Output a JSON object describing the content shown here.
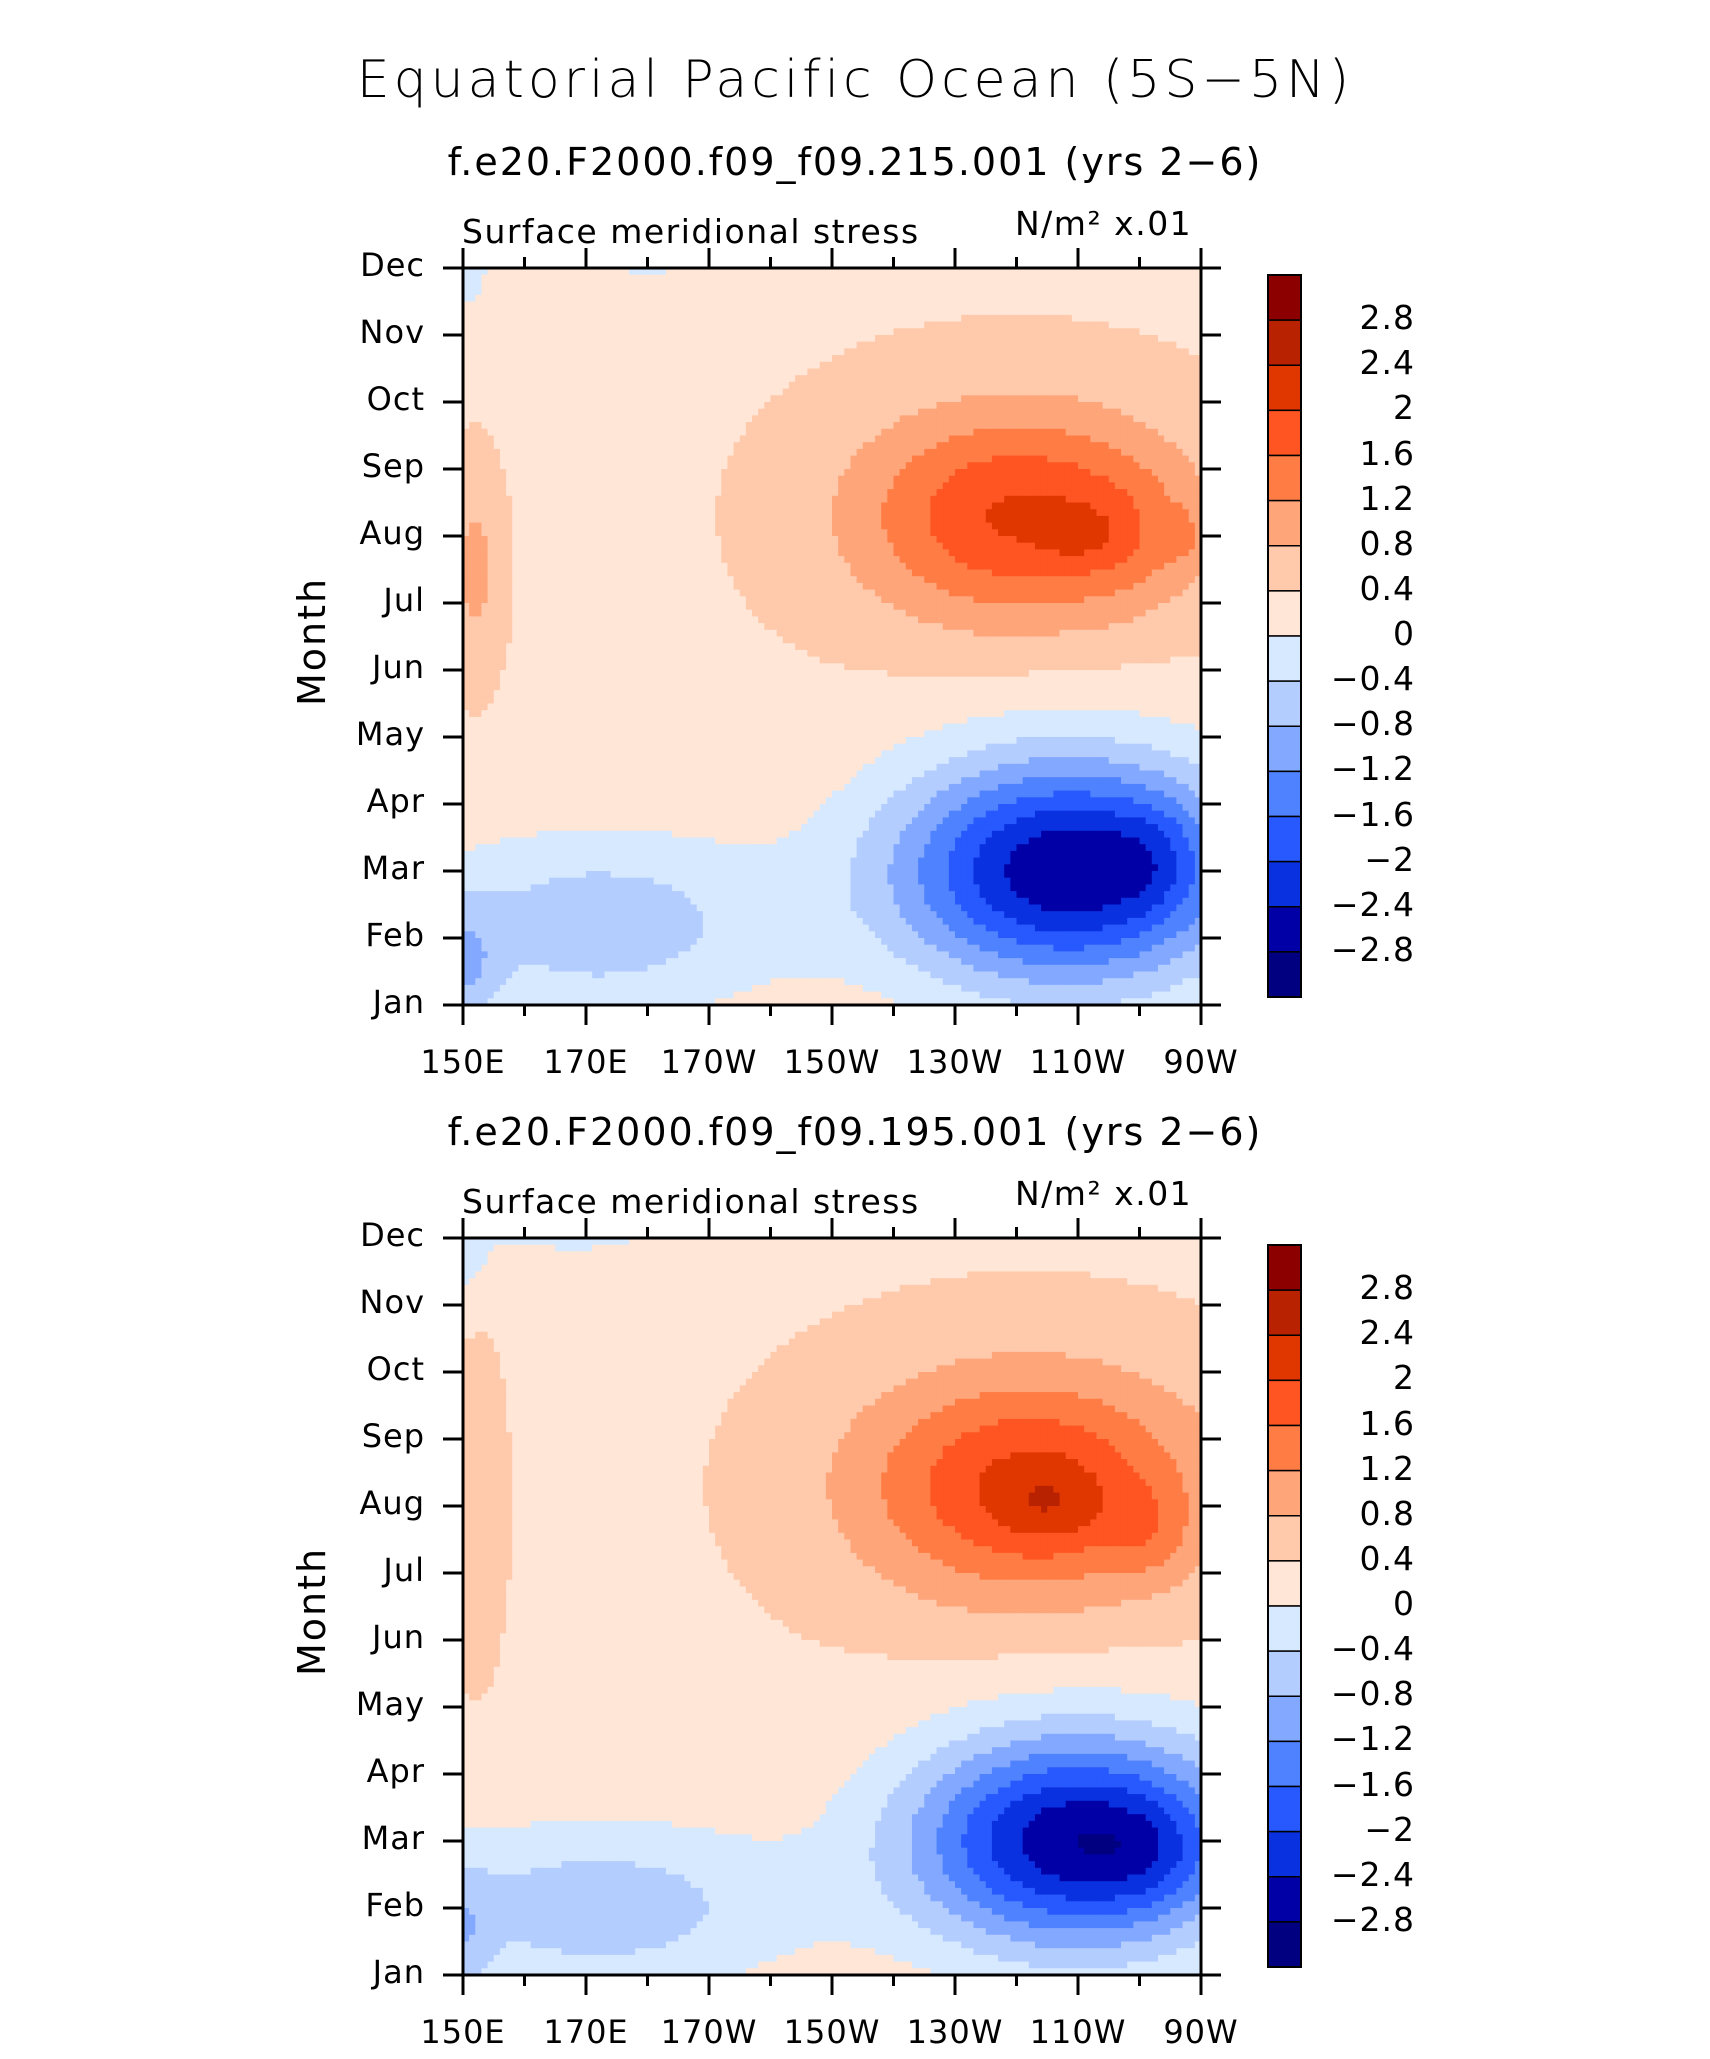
{
  "title": "Equatorial Pacific Ocean (5S−5N)",
  "colorbar": {
    "levels": [
      "2.8",
      "2.4",
      "2",
      "1.6",
      "1.2",
      "0.8",
      "0.4",
      "0",
      "−0.4",
      "−0.8",
      "−1.2",
      "−1.6",
      "−2",
      "−2.4",
      "−2.8"
    ],
    "colors": [
      "#8c0000",
      "#b82200",
      "#e03600",
      "#ff5522",
      "#ff7c44",
      "#ffa57a",
      "#ffc9ab",
      "#ffe6d6",
      "#d7e9ff",
      "#b4cdff",
      "#83a8ff",
      "#4f82ff",
      "#2759ff",
      "#0a31e0",
      "#0000a6",
      "#000080"
    ]
  },
  "chart_data": [
    {
      "type": "heatmap",
      "subtitle": "f.e20.F2000.f09_f09.215.001 (yrs 2−6)",
      "variable": "Surface meridional stress",
      "units": "N/m² x.01",
      "ylabel": "Month",
      "x_ticklabels": [
        "150E",
        "170E",
        "170W",
        "150W",
        "130W",
        "110W",
        "90W"
      ],
      "y_ticklabels": [
        "Jan",
        "Feb",
        "Mar",
        "Apr",
        "May",
        "Jun",
        "Jul",
        "Aug",
        "Sep",
        "Oct",
        "Nov",
        "Dec"
      ],
      "xlim": [
        150,
        270
      ],
      "ylim": [
        1,
        12
      ],
      "contour_levels": [
        -2.8,
        -2.4,
        -2,
        -1.6,
        -1.2,
        -0.8,
        -0.4,
        0,
        0.4,
        0.8,
        1.2,
        1.6,
        2,
        2.4,
        2.8
      ],
      "features": [
        {
          "type": "max",
          "lon": 250,
          "month": 8,
          "value": 2.1
        },
        {
          "type": "max",
          "lon": 266,
          "month": 8,
          "value": 2.0
        },
        {
          "type": "min",
          "lon": 254,
          "month": 3,
          "value": -2.7
        }
      ]
    },
    {
      "type": "heatmap",
      "subtitle": "f.e20.F2000.f09_f09.195.001 (yrs 2−6)",
      "variable": "Surface meridional stress",
      "units": "N/m² x.01",
      "ylabel": "Month",
      "x_ticklabels": [
        "150E",
        "170E",
        "170W",
        "150W",
        "130W",
        "110W",
        "90W"
      ],
      "y_ticklabels": [
        "Jan",
        "Feb",
        "Mar",
        "Apr",
        "May",
        "Jun",
        "Jul",
        "Aug",
        "Sep",
        "Oct",
        "Nov",
        "Dec"
      ],
      "xlim": [
        150,
        270
      ],
      "ylim": [
        1,
        12
      ],
      "contour_levels": [
        -2.8,
        -2.4,
        -2,
        -1.6,
        -1.2,
        -0.8,
        -0.4,
        0,
        0.4,
        0.8,
        1.2,
        1.6,
        2,
        2.4,
        2.8
      ],
      "features": [
        {
          "type": "max",
          "lon": 242,
          "month": 8,
          "value": 2.2
        },
        {
          "type": "max",
          "lon": 262,
          "month": 7.5,
          "value": 2.1
        },
        {
          "type": "min",
          "lon": 257,
          "month": 2.8,
          "value": -2.6
        }
      ]
    }
  ]
}
